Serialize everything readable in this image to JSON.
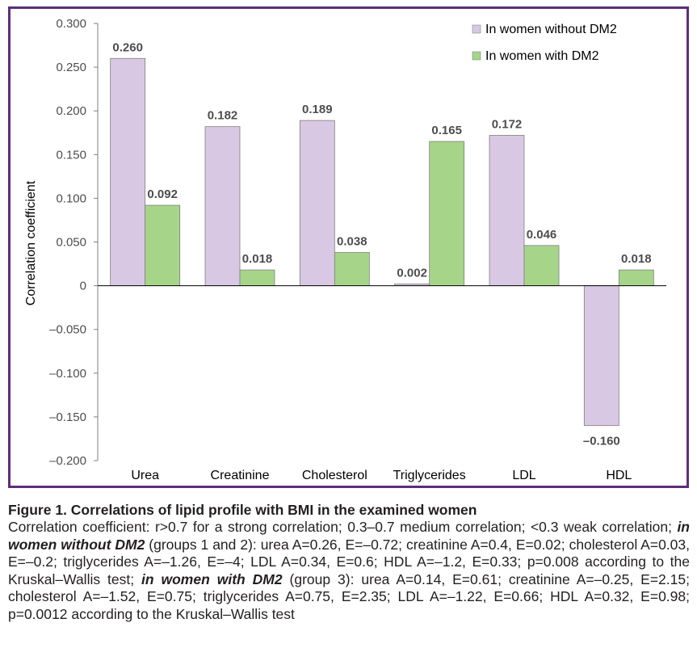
{
  "chart_data": {
    "type": "bar",
    "categories": [
      "Urea",
      "Creatinine",
      "Cholesterol",
      "Triglycerides",
      "LDL",
      "HDL"
    ],
    "series": [
      {
        "name": "In women without DM2",
        "color": "#d9c8e3",
        "values": [
          0.26,
          0.182,
          0.189,
          0.002,
          0.172,
          -0.16
        ],
        "labels": [
          "0.260",
          "0.182",
          "0.189",
          "0.002",
          "0.172",
          "–0.160"
        ]
      },
      {
        "name": "In women with DM2",
        "color": "#a6d58a",
        "values": [
          0.092,
          0.018,
          0.038,
          0.165,
          0.046,
          0.018
        ],
        "labels": [
          "0.092",
          "0.018",
          "0.038",
          "0.165",
          "0.046",
          "0.018"
        ]
      }
    ],
    "ylabel": "Correlation coefficient",
    "ylim": [
      -0.2,
      0.3
    ],
    "yticks": [
      0.3,
      0.25,
      0.2,
      0.15,
      0.1,
      0.05,
      0,
      -0.05,
      -0.1,
      -0.15,
      -0.2
    ],
    "ytick_labels": [
      "0.300",
      "0.250",
      "0.200",
      "0.150",
      "0.100",
      "0.050",
      "0",
      "–0.050",
      "–0.100",
      "–0.150",
      "–0.200"
    ],
    "grid": false,
    "legend_position": "top-right"
  },
  "caption": {
    "title": "Figure 1. Correlations of lipid profile with BMI in the examined women",
    "p1": "Correlation coefficient: r>0.7 for a strong correlation; 0.3–0.7 medium correlation; <0.3 weak correlation; ",
    "em1": "in women without DM2",
    "p2": " (groups 1 and 2): urea A=0.26, E=–0.72; creatinine A=0.4, E=0.02; cholesterol A=0.03, E=–0.2; triglycerides A=–1.26, E=–4; LDL A=0.34, E=0.6; HDL A=–1.2, E=0.33; p=0.008 according to the Kruskal–Wallis test; ",
    "em2": "in women with DM2",
    "p3": " (group 3): urea A=0.14, E=0.61; creatinine A=–0.25, E=2.15; cholesterol A=–1.52, E=0.75; triglycerides A=0.75, E=2.35; LDL A=–1.22, E=0.66; HDL A=0.32, E=0.98; p=0.0012 according to the Kruskal–Wallis test"
  }
}
